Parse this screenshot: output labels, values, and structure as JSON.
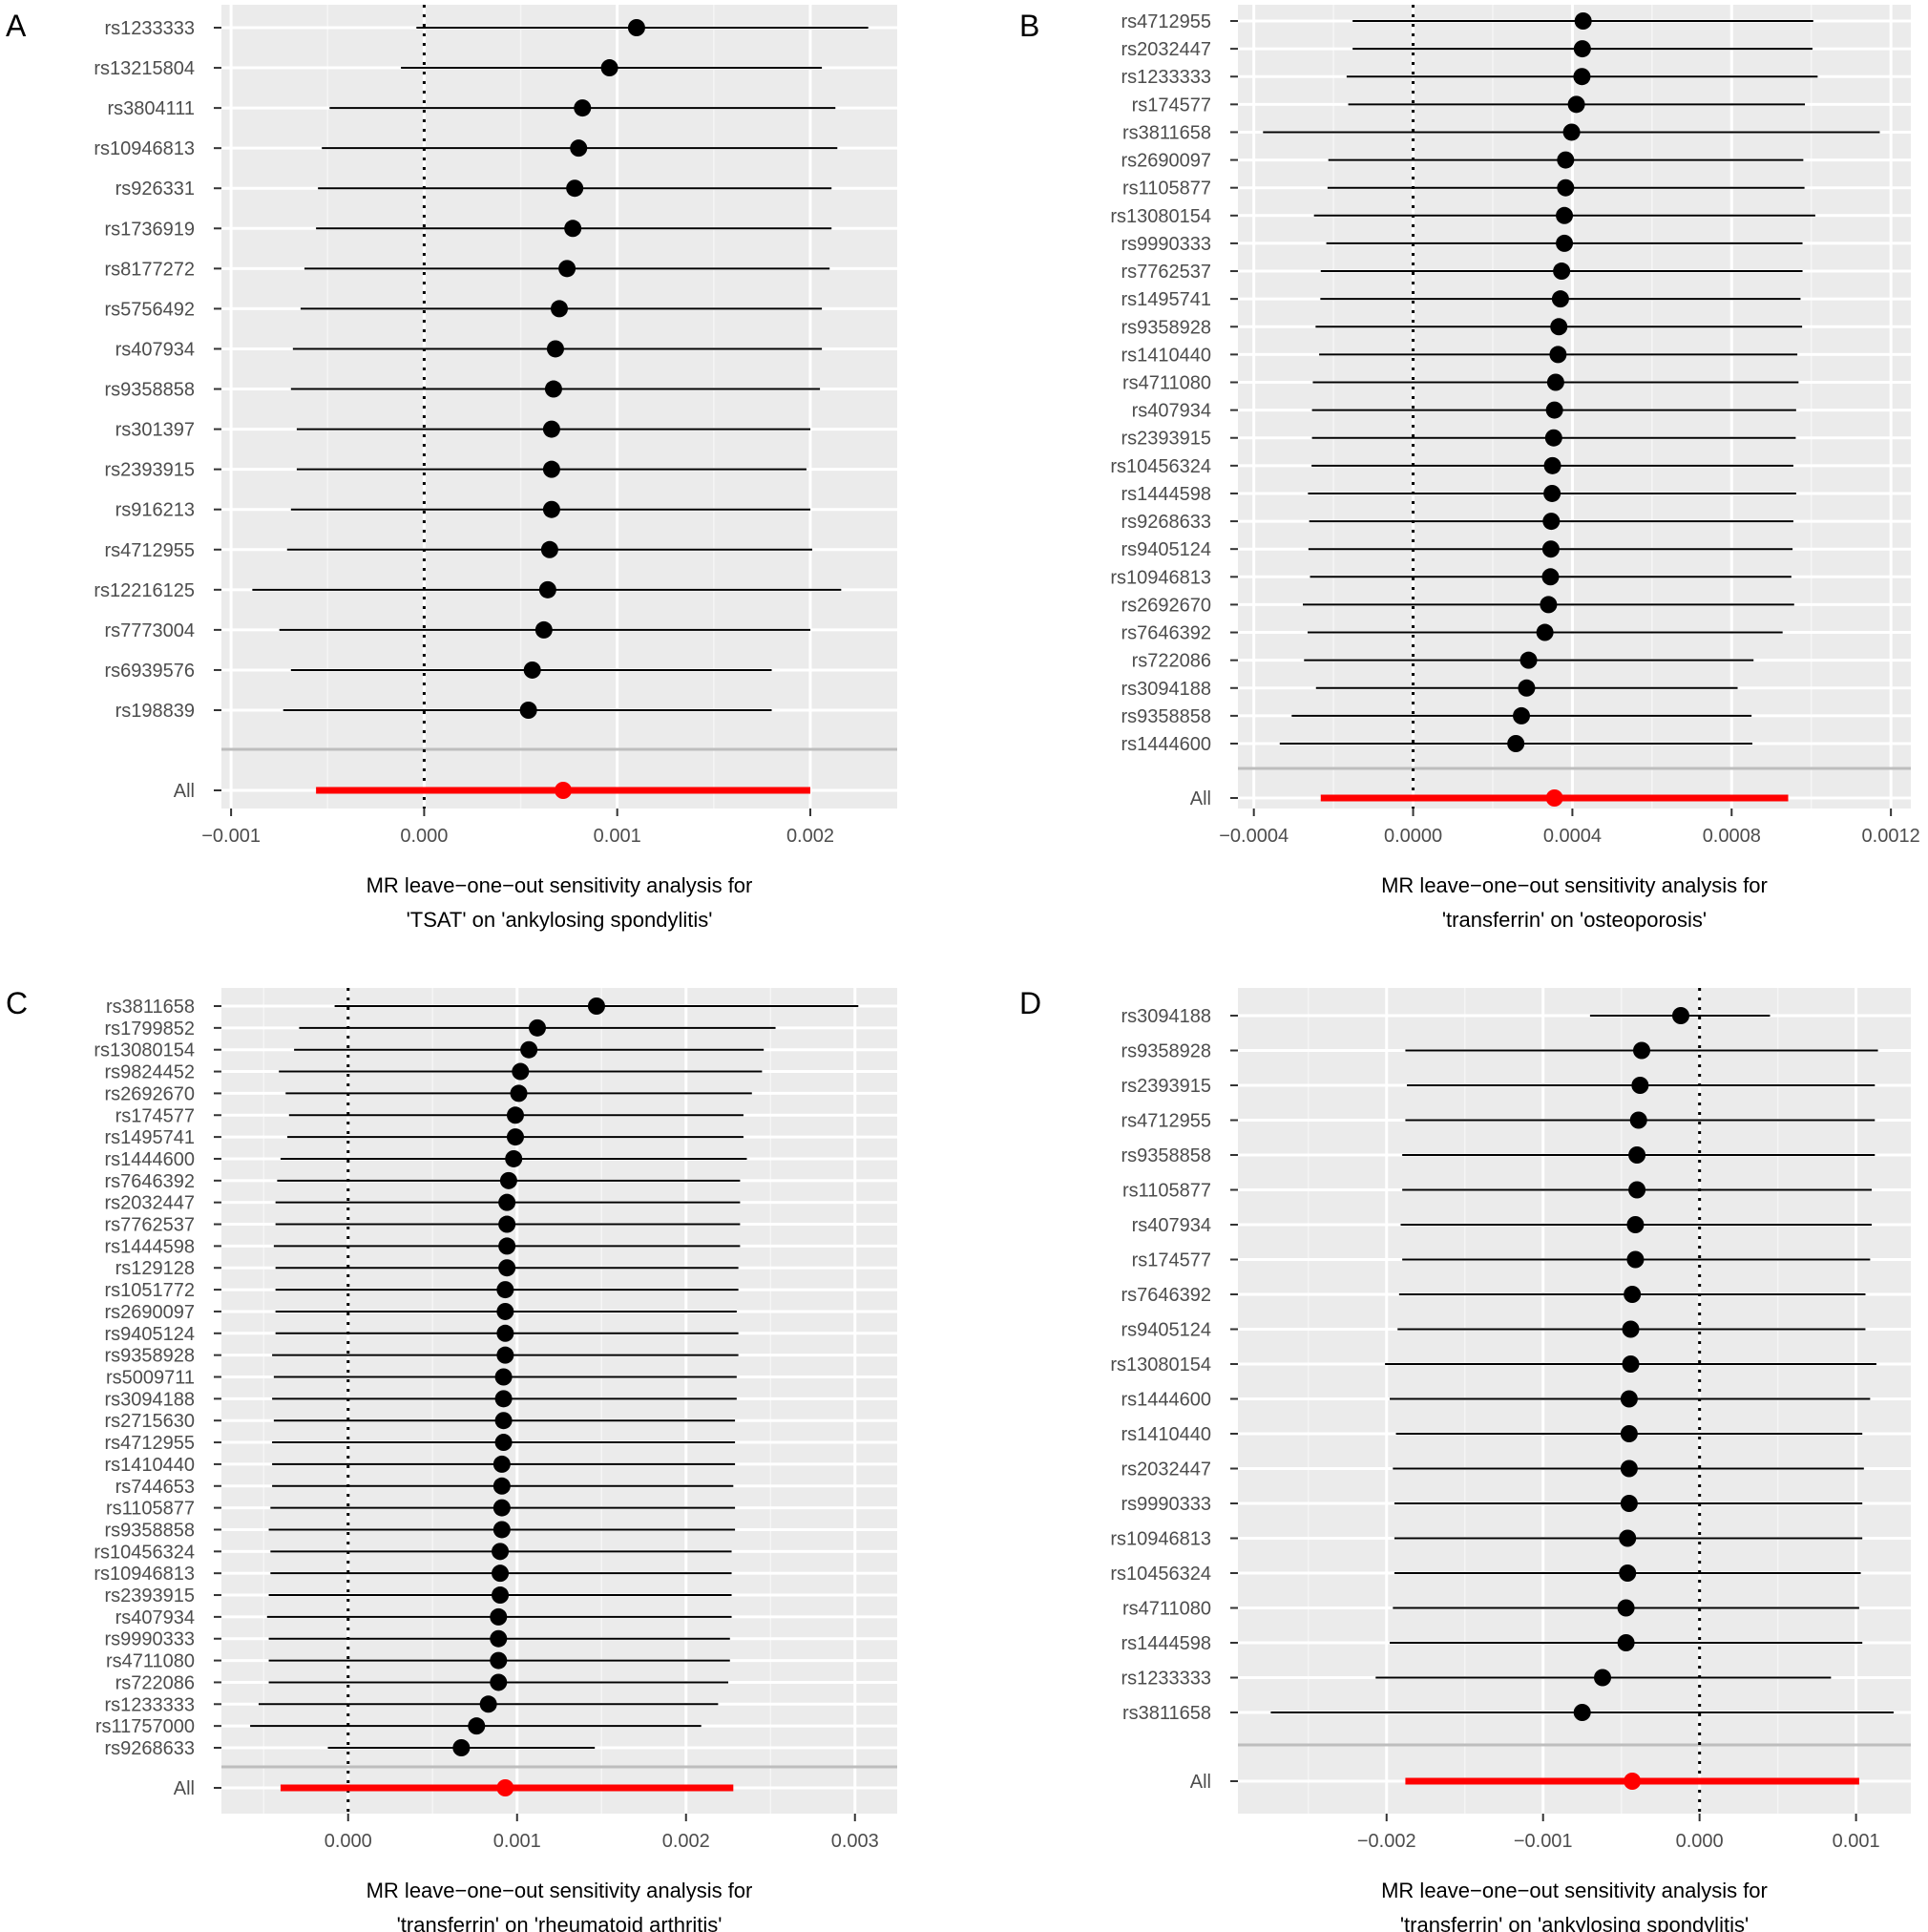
{
  "chart_data": [
    {
      "type": "forest",
      "panel": "A",
      "title_line1": "MR leave−one−out sensitivity analysis for",
      "title_line2": "'TSAT' on 'ankylosing spondylitis'",
      "xlim": [
        -0.00105,
        0.00245
      ],
      "xticks": [
        -0.001,
        0.0,
        0.001,
        0.002
      ],
      "xtick_labels": [
        "−0.001",
        "0.000",
        "0.001",
        "0.002"
      ],
      "null_line": 0,
      "snps": [
        {
          "label": "rs1233333",
          "b": 0.0011,
          "lo": -4e-05,
          "hi": 0.0023
        },
        {
          "label": "rs13215804",
          "b": 0.00096,
          "lo": -0.00012,
          "hi": 0.00206
        },
        {
          "label": "rs3804111",
          "b": 0.00082,
          "lo": -0.00049,
          "hi": 0.00213
        },
        {
          "label": "rs10946813",
          "b": 0.0008,
          "lo": -0.00053,
          "hi": 0.00214
        },
        {
          "label": "rs926331",
          "b": 0.00078,
          "lo": -0.00055,
          "hi": 0.00211
        },
        {
          "label": "rs1736919",
          "b": 0.00077,
          "lo": -0.00056,
          "hi": 0.00211
        },
        {
          "label": "rs8177272",
          "b": 0.00074,
          "lo": -0.00062,
          "hi": 0.0021
        },
        {
          "label": "rs5756492",
          "b": 0.0007,
          "lo": -0.00064,
          "hi": 0.00206
        },
        {
          "label": "rs407934",
          "b": 0.00068,
          "lo": -0.00068,
          "hi": 0.00206
        },
        {
          "label": "rs9358858",
          "b": 0.00067,
          "lo": -0.00069,
          "hi": 0.00205
        },
        {
          "label": "rs301397",
          "b": 0.00066,
          "lo": -0.00066,
          "hi": 0.002
        },
        {
          "label": "rs2393915",
          "b": 0.00066,
          "lo": -0.00066,
          "hi": 0.00198
        },
        {
          "label": "rs916213",
          "b": 0.00066,
          "lo": -0.00069,
          "hi": 0.002
        },
        {
          "label": "rs4712955",
          "b": 0.00065,
          "lo": -0.00071,
          "hi": 0.00201
        },
        {
          "label": "rs12216125",
          "b": 0.00064,
          "lo": -0.00089,
          "hi": 0.00216
        },
        {
          "label": "rs7773004",
          "b": 0.00062,
          "lo": -0.00075,
          "hi": 0.002
        },
        {
          "label": "rs6939576",
          "b": 0.00056,
          "lo": -0.00069,
          "hi": 0.0018
        },
        {
          "label": "rs198839",
          "b": 0.00054,
          "lo": -0.00073,
          "hi": 0.0018
        }
      ],
      "overall": {
        "label": "All",
        "b": 0.00072,
        "lo": -0.00056,
        "hi": 0.002
      }
    },
    {
      "type": "forest",
      "panel": "B",
      "title_line1": "MR leave−one−out sensitivity analysis for",
      "title_line2": "'transferrin' on 'osteoporosis'",
      "xlim": [
        -0.00044,
        0.00125
      ],
      "xticks": [
        -0.0004,
        0.0,
        0.0004,
        0.0008,
        0.0012
      ],
      "xtick_labels": [
        "−0.0004",
        "0.0000",
        "0.0004",
        "0.0008",
        "0.0012"
      ],
      "null_line": 0,
      "snps": [
        {
          "label": "rs4712955",
          "b": 0.000427,
          "lo": -0.000152,
          "hi": 0.001005
        },
        {
          "label": "rs2032447",
          "b": 0.000425,
          "lo": -0.000152,
          "hi": 0.001003
        },
        {
          "label": "rs1233333",
          "b": 0.000424,
          "lo": -0.000167,
          "hi": 0.001016
        },
        {
          "label": "rs174577",
          "b": 0.00041,
          "lo": -0.000163,
          "hi": 0.000984
        },
        {
          "label": "rs3811658",
          "b": 0.000398,
          "lo": -0.000377,
          "hi": 0.001172
        },
        {
          "label": "rs2690097",
          "b": 0.000383,
          "lo": -0.000213,
          "hi": 0.00098
        },
        {
          "label": "rs1105877",
          "b": 0.000383,
          "lo": -0.000215,
          "hi": 0.000983
        },
        {
          "label": "rs13080154",
          "b": 0.00038,
          "lo": -0.000249,
          "hi": 0.00101
        },
        {
          "label": "rs9990333",
          "b": 0.00038,
          "lo": -0.000218,
          "hi": 0.000978
        },
        {
          "label": "rs7762537",
          "b": 0.000373,
          "lo": -0.000232,
          "hi": 0.000978
        },
        {
          "label": "rs1495741",
          "b": 0.00037,
          "lo": -0.000233,
          "hi": 0.000973
        },
        {
          "label": "rs9358928",
          "b": 0.000366,
          "lo": -0.000245,
          "hi": 0.000977
        },
        {
          "label": "rs1410440",
          "b": 0.000364,
          "lo": -0.000236,
          "hi": 0.000965
        },
        {
          "label": "rs4711080",
          "b": 0.000358,
          "lo": -0.000252,
          "hi": 0.000968
        },
        {
          "label": "rs407934",
          "b": 0.000355,
          "lo": -0.000254,
          "hi": 0.000962
        },
        {
          "label": "rs2393915",
          "b": 0.000353,
          "lo": -0.000254,
          "hi": 0.000961
        },
        {
          "label": "rs10456324",
          "b": 0.00035,
          "lo": -0.000255,
          "hi": 0.000955
        },
        {
          "label": "rs1444598",
          "b": 0.000349,
          "lo": -0.000264,
          "hi": 0.000962
        },
        {
          "label": "rs9268633",
          "b": 0.000347,
          "lo": -0.000261,
          "hi": 0.000955
        },
        {
          "label": "rs9405124",
          "b": 0.000346,
          "lo": -0.000263,
          "hi": 0.000953
        },
        {
          "label": "rs10946813",
          "b": 0.000345,
          "lo": -0.000259,
          "hi": 0.00095
        },
        {
          "label": "rs2692670",
          "b": 0.00034,
          "lo": -0.000277,
          "hi": 0.000957
        },
        {
          "label": "rs7646392",
          "b": 0.000331,
          "lo": -0.000265,
          "hi": 0.000928
        },
        {
          "label": "rs722086",
          "b": 0.00029,
          "lo": -0.000274,
          "hi": 0.000855
        },
        {
          "label": "rs3094188",
          "b": 0.000285,
          "lo": -0.000244,
          "hi": 0.000815
        },
        {
          "label": "rs9358858",
          "b": 0.000272,
          "lo": -0.000305,
          "hi": 0.00085
        },
        {
          "label": "rs1444600",
          "b": 0.000258,
          "lo": -0.000335,
          "hi": 0.000852
        }
      ],
      "overall": {
        "label": "All",
        "b": 0.000355,
        "lo": -0.000232,
        "hi": 0.000942
      }
    },
    {
      "type": "forest",
      "panel": "C",
      "title_line1": "MR leave−one−out sensitivity analysis for",
      "title_line2": "'transferrin' on 'rheumatoid arthritis'",
      "xlim": [
        -0.00075,
        0.00325
      ],
      "xticks": [
        0.0,
        0.001,
        0.002,
        0.003
      ],
      "xtick_labels": [
        "0.000",
        "0.001",
        "0.002",
        "0.003"
      ],
      "null_line": 0,
      "snps": [
        {
          "label": "rs3811658",
          "b": 0.00147,
          "lo": -8e-05,
          "hi": 0.00302
        },
        {
          "label": "rs1799852",
          "b": 0.00112,
          "lo": -0.00029,
          "hi": 0.00253
        },
        {
          "label": "rs13080154",
          "b": 0.00107,
          "lo": -0.00032,
          "hi": 0.00246
        },
        {
          "label": "rs9824452",
          "b": 0.00102,
          "lo": -0.00041,
          "hi": 0.00245
        },
        {
          "label": "rs2692670",
          "b": 0.00101,
          "lo": -0.00037,
          "hi": 0.00239
        },
        {
          "label": "rs174577",
          "b": 0.00099,
          "lo": -0.00035,
          "hi": 0.00234
        },
        {
          "label": "rs1495741",
          "b": 0.00099,
          "lo": -0.00036,
          "hi": 0.00234
        },
        {
          "label": "rs1444600",
          "b": 0.00098,
          "lo": -0.0004,
          "hi": 0.00236
        },
        {
          "label": "rs7646392",
          "b": 0.00095,
          "lo": -0.00042,
          "hi": 0.00232
        },
        {
          "label": "rs2032447",
          "b": 0.00094,
          "lo": -0.00043,
          "hi": 0.00232
        },
        {
          "label": "rs7762537",
          "b": 0.00094,
          "lo": -0.00043,
          "hi": 0.00232
        },
        {
          "label": "rs1444598",
          "b": 0.00094,
          "lo": -0.00044,
          "hi": 0.00232
        },
        {
          "label": "rs129128",
          "b": 0.00094,
          "lo": -0.00043,
          "hi": 0.00231
        },
        {
          "label": "rs1051772",
          "b": 0.00093,
          "lo": -0.00043,
          "hi": 0.00231
        },
        {
          "label": "rs2690097",
          "b": 0.00093,
          "lo": -0.00043,
          "hi": 0.0023
        },
        {
          "label": "rs9405124",
          "b": 0.00093,
          "lo": -0.00043,
          "hi": 0.00231
        },
        {
          "label": "rs9358928",
          "b": 0.00093,
          "lo": -0.00045,
          "hi": 0.00231
        },
        {
          "label": "rs5009711",
          "b": 0.00092,
          "lo": -0.00044,
          "hi": 0.0023
        },
        {
          "label": "rs3094188",
          "b": 0.00092,
          "lo": -0.00045,
          "hi": 0.0023
        },
        {
          "label": "rs2715630",
          "b": 0.00092,
          "lo": -0.00044,
          "hi": 0.00229
        },
        {
          "label": "rs4712955",
          "b": 0.00092,
          "lo": -0.00045,
          "hi": 0.00229
        },
        {
          "label": "rs1410440",
          "b": 0.00091,
          "lo": -0.00045,
          "hi": 0.00229
        },
        {
          "label": "rs744653",
          "b": 0.00091,
          "lo": -0.00045,
          "hi": 0.00228
        },
        {
          "label": "rs1105877",
          "b": 0.00091,
          "lo": -0.00046,
          "hi": 0.00229
        },
        {
          "label": "rs9358858",
          "b": 0.00091,
          "lo": -0.00047,
          "hi": 0.00229
        },
        {
          "label": "rs10456324",
          "b": 0.0009,
          "lo": -0.00046,
          "hi": 0.00227
        },
        {
          "label": "rs10946813",
          "b": 0.0009,
          "lo": -0.00046,
          "hi": 0.00227
        },
        {
          "label": "rs2393915",
          "b": 0.0009,
          "lo": -0.00047,
          "hi": 0.00227
        },
        {
          "label": "rs407934",
          "b": 0.00089,
          "lo": -0.00048,
          "hi": 0.00227
        },
        {
          "label": "rs9990333",
          "b": 0.00089,
          "lo": -0.00047,
          "hi": 0.00226
        },
        {
          "label": "rs4711080",
          "b": 0.00089,
          "lo": -0.00047,
          "hi": 0.00226
        },
        {
          "label": "rs722086",
          "b": 0.00089,
          "lo": -0.00047,
          "hi": 0.00225
        },
        {
          "label": "rs1233333",
          "b": 0.00083,
          "lo": -0.00053,
          "hi": 0.00219
        },
        {
          "label": "rs11757000",
          "b": 0.00076,
          "lo": -0.00058,
          "hi": 0.00209
        },
        {
          "label": "rs9268633",
          "b": 0.00067,
          "lo": -0.00012,
          "hi": 0.00146
        }
      ],
      "overall": {
        "label": "All",
        "b": 0.00093,
        "lo": -0.0004,
        "hi": 0.00228
      }
    },
    {
      "type": "forest",
      "panel": "D",
      "title_line1": "MR leave−one−out sensitivity analysis for",
      "title_line2": "'transferrin' on 'ankylosing spondylitis'",
      "xlim": [
        -0.00295,
        0.00135
      ],
      "xticks": [
        -0.002,
        -0.001,
        0.0,
        0.001
      ],
      "xtick_labels": [
        "−0.002",
        "−0.001",
        "0.000",
        "0.001"
      ],
      "null_line": 0,
      "snps": [
        {
          "label": "rs3094188",
          "b": -0.00012,
          "lo": -0.0007,
          "hi": 0.00045
        },
        {
          "label": "rs9358928",
          "b": -0.00037,
          "lo": -0.00188,
          "hi": 0.00114
        },
        {
          "label": "rs2393915",
          "b": -0.00038,
          "lo": -0.00187,
          "hi": 0.00112
        },
        {
          "label": "rs4712955",
          "b": -0.00039,
          "lo": -0.00188,
          "hi": 0.00112
        },
        {
          "label": "rs9358858",
          "b": -0.0004,
          "lo": -0.0019,
          "hi": 0.00112
        },
        {
          "label": "rs1105877",
          "b": -0.0004,
          "lo": -0.0019,
          "hi": 0.0011
        },
        {
          "label": "rs407934",
          "b": -0.00041,
          "lo": -0.00191,
          "hi": 0.0011
        },
        {
          "label": "rs174577",
          "b": -0.00041,
          "lo": -0.0019,
          "hi": 0.00109
        },
        {
          "label": "rs7646392",
          "b": -0.00043,
          "lo": -0.00192,
          "hi": 0.00106
        },
        {
          "label": "rs9405124",
          "b": -0.00044,
          "lo": -0.00193,
          "hi": 0.00106
        },
        {
          "label": "rs13080154",
          "b": -0.00044,
          "lo": -0.00201,
          "hi": 0.00113
        },
        {
          "label": "rs1444600",
          "b": -0.00045,
          "lo": -0.00198,
          "hi": 0.00109
        },
        {
          "label": "rs1410440",
          "b": -0.00045,
          "lo": -0.00194,
          "hi": 0.00104
        },
        {
          "label": "rs2032447",
          "b": -0.00045,
          "lo": -0.00196,
          "hi": 0.00105
        },
        {
          "label": "rs9990333",
          "b": -0.00045,
          "lo": -0.00195,
          "hi": 0.00104
        },
        {
          "label": "rs10946813",
          "b": -0.00046,
          "lo": -0.00195,
          "hi": 0.00104
        },
        {
          "label": "rs10456324",
          "b": -0.00046,
          "lo": -0.00195,
          "hi": 0.00103
        },
        {
          "label": "rs4711080",
          "b": -0.00047,
          "lo": -0.00196,
          "hi": 0.00102
        },
        {
          "label": "rs1444598",
          "b": -0.00047,
          "lo": -0.00198,
          "hi": 0.00104
        },
        {
          "label": "rs1233333",
          "b": -0.00062,
          "lo": -0.00207,
          "hi": 0.00084
        },
        {
          "label": "rs3811658",
          "b": -0.00075,
          "lo": -0.00274,
          "hi": 0.00124
        }
      ],
      "overall": {
        "label": "All",
        "b": -0.00043,
        "lo": -0.00188,
        "hi": 0.00102
      }
    }
  ]
}
